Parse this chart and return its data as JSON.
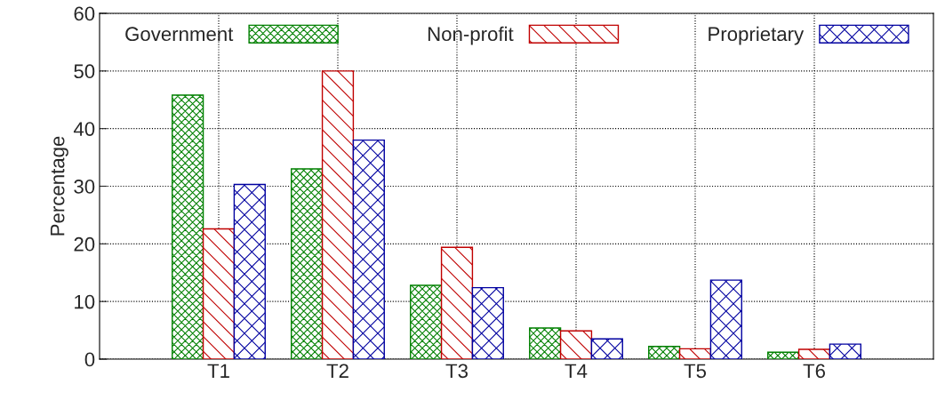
{
  "chart_data": {
    "type": "bar",
    "ylabel": "Percentage",
    "categories": [
      "T1",
      "T2",
      "T3",
      "T4",
      "T5",
      "T6"
    ],
    "series": [
      {
        "name": "Government",
        "color": "#008000",
        "values": [
          45.8,
          33.0,
          12.8,
          5.4,
          2.2,
          1.2
        ]
      },
      {
        "name": "Non-profit",
        "color": "#c00000",
        "values": [
          22.6,
          50.0,
          19.4,
          4.9,
          1.8,
          1.7
        ]
      },
      {
        "name": "Proprietary",
        "color": "#0000a0",
        "values": [
          30.3,
          38.0,
          12.4,
          3.5,
          13.7,
          2.6
        ]
      }
    ],
    "ylim": [
      0,
      60
    ],
    "yticks": [
      0,
      10,
      20,
      30,
      40,
      50,
      60
    ],
    "grid": true,
    "legend": "top"
  }
}
